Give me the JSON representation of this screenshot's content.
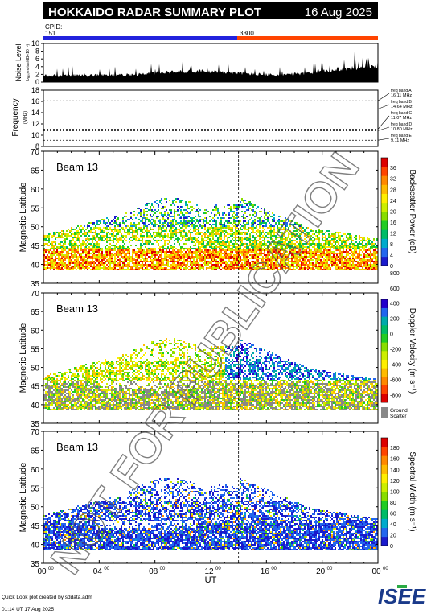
{
  "header": {
    "title": "HOKKAIDO RADAR SUMMARY PLOT",
    "date": "16 Aug 2025",
    "cpid_label": "CPID:",
    "cpid_left": "151",
    "cpid_right": "3300"
  },
  "colors": {
    "cpid_left": "#2222dd",
    "cpid_right": "#ff4400",
    "ground_scatter": "#888888"
  },
  "watermark": "NOT FOR PUBLICATION",
  "noise_panel": {
    "ylabel": "Noise Level",
    "ylabel_sub": "log₁₀(noise/dB×10⁻⁶)",
    "yticks": [
      0,
      2,
      4,
      6,
      8,
      10
    ]
  },
  "freq_panel": {
    "ylabel": "Frequency",
    "ylabel_sub": "(MHz)",
    "yticks": [
      8,
      10,
      12,
      14,
      16,
      18
    ],
    "bands": [
      {
        "label": "freq band A",
        "mhz": "16.11 MHz",
        "value": 16.11
      },
      {
        "label": "freq band B",
        "mhz": "14.64 MHz",
        "value": 14.64
      },
      {
        "label": "freq band C",
        "mhz": "11.07 MHz",
        "value": 11.07
      },
      {
        "label": "freq band D",
        "mhz": "10.80 MHz",
        "value": 10.8
      },
      {
        "label": "freq band E",
        "mhz": "9.11 MHz",
        "value": 9.11
      }
    ]
  },
  "panels": [
    {
      "beam": "Beam 13",
      "ylabel": "Magnetic Latitude",
      "cblabel": "Backscatter Power (dB)",
      "cbticks": [
        "0",
        "4",
        "8",
        "12",
        "16",
        "20",
        "24",
        "28",
        "32",
        "36"
      ]
    },
    {
      "beam": "Beam 13",
      "ylabel": "Magnetic Latitude",
      "cblabel": "Doppler Velocity (m s⁻¹)",
      "cbticks": [
        "-800",
        "-600",
        "-400",
        "-200",
        "0",
        "200",
        "400",
        "600",
        "800"
      ],
      "ground_label": "Ground",
      "ground_label2": "Scatter"
    },
    {
      "beam": "Beam 13",
      "ylabel": "Magnetic Latitude",
      "cblabel": "Spectral Width (m s⁻¹)",
      "cbticks": [
        "0",
        "20",
        "40",
        "60",
        "80",
        "100",
        "120",
        "140",
        "160",
        "180"
      ]
    }
  ],
  "lat_ticks": [
    35,
    40,
    45,
    50,
    55,
    60,
    65,
    70
  ],
  "x_axis": {
    "label": "UT",
    "ticks": [
      {
        "h": "00",
        "m": "00"
      },
      {
        "h": "04",
        "m": "00"
      },
      {
        "h": "08",
        "m": "00"
      },
      {
        "h": "12",
        "m": "00"
      },
      {
        "h": "16",
        "m": "00"
      },
      {
        "h": "20",
        "m": "00"
      },
      {
        "h": "00",
        "m": "00"
      }
    ]
  },
  "footer": {
    "line1": "Quick Look plot created by sddata.adm",
    "line2": "01:14 UT 17 Aug 2025",
    "logo": "ISEE"
  },
  "chart_data": {
    "type": "heatmap",
    "x_units": "hours UT",
    "x_range": [
      0,
      24
    ],
    "cpid_change_hour": 14,
    "lat_range": [
      35,
      70
    ],
    "scatter_regions": [
      {
        "t0": 0.1,
        "t1": 12.0,
        "lat0": 38.5,
        "lat1": 58.0
      },
      {
        "t0": 14.0,
        "t1": 23.9,
        "lat0": 38.5,
        "lat1": 58.0
      }
    ],
    "power_range_db": [
      0,
      36
    ],
    "velocity_range": [
      -800,
      800
    ],
    "width_range": [
      0,
      180
    ],
    "noise_range": [
      0,
      10
    ],
    "freq_range_mhz": [
      8,
      18
    ]
  }
}
